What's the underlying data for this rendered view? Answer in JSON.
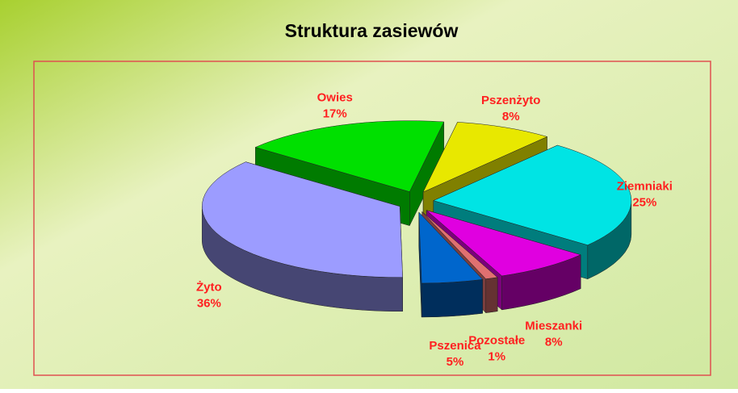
{
  "chart_data": {
    "type": "pie",
    "title": "Struktura zasiewów",
    "categories": [
      "Pszenżyto",
      "Ziemniaki",
      "Mieszanki",
      "Pozostałe",
      "Pszenica",
      "Żyto",
      "Owies"
    ],
    "values": [
      8,
      25,
      8,
      1,
      5,
      36,
      17
    ],
    "value_labels": [
      "8%",
      "25%",
      "8%",
      "1%",
      "5%",
      "36%",
      "17%"
    ],
    "colors": [
      "#e8e800",
      "#00e4e4",
      "#e000e0",
      "#e07070",
      "#0066cc",
      "#9c9cff",
      "#00e000"
    ]
  }
}
